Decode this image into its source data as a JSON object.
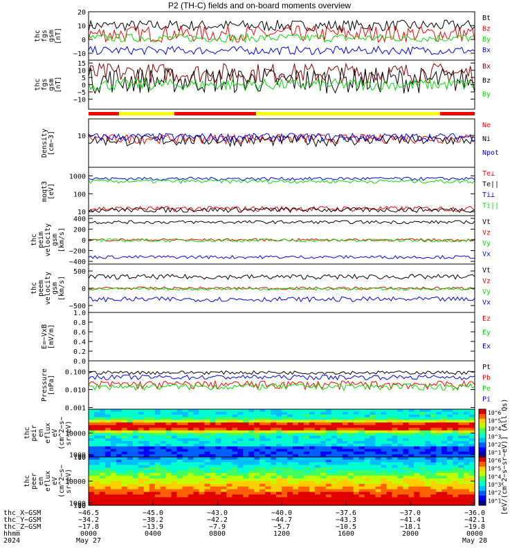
{
  "title": "P2 (TH-C) fields and on-board moments overview",
  "colors": {
    "black": "#000000",
    "red": "#ff0000",
    "green": "#00e000",
    "blue": "#0000ff",
    "darkred": "#8b0000"
  },
  "chart_data": [
    {
      "id": "fgs1",
      "type": "line",
      "ylabel": [
        "thc",
        "fgs",
        "gsm",
        "[nT]"
      ],
      "ylim": [
        -15,
        20
      ],
      "yticks": [
        "20",
        "10",
        "0",
        "−10"
      ],
      "yticks_v": [
        20,
        10,
        0,
        -10
      ],
      "series": [
        {
          "name": "Bt",
          "color": "#000000",
          "level": 10,
          "amp": 4
        },
        {
          "name": "Bz",
          "color": "#ff0000",
          "level": 4,
          "amp": 6
        },
        {
          "name": "By",
          "color": "#00e000",
          "level": 1,
          "amp": 3
        },
        {
          "name": "Bx",
          "color": "#0000ff",
          "level": -8,
          "amp": 3
        }
      ]
    },
    {
      "id": "fgs2",
      "type": "line",
      "ylabel": [
        "thc",
        "fgs",
        "gsm",
        "[nT]"
      ],
      "ylim": [
        -17,
        17
      ],
      "yticks": [
        "15",
        "10",
        "5",
        "0",
        "−5",
        "−10"
      ],
      "yticks_v": [
        15,
        10,
        5,
        0,
        -5,
        -10
      ],
      "series": [
        {
          "name": "Bx",
          "color": "#8b0000",
          "level": 8,
          "amp": 7
        },
        {
          "name": "Bz",
          "color": "#000000",
          "level": 3,
          "amp": 9
        },
        {
          "name": "By",
          "color": "#00e000",
          "level": 0,
          "amp": 4
        }
      ]
    },
    {
      "id": "density",
      "type": "line",
      "log": true,
      "ylabel": [
        "Density",
        "[cm−3]"
      ],
      "ylim": [
        0.7,
        40
      ],
      "yticks": [
        "10"
      ],
      "yticks_v": [
        10
      ],
      "series": [
        {
          "name": "Ne",
          "color": "#ff0000",
          "level": 8,
          "amp": 3
        },
        {
          "name": "Ni",
          "color": "#000000",
          "level": 7,
          "amp": 3
        },
        {
          "name": "Npot",
          "color": "#0000ff",
          "level": 9,
          "amp": 3
        }
      ]
    },
    {
      "id": "temp",
      "type": "line",
      "log": true,
      "ylabel": [
        "moqt3",
        "[eV]"
      ],
      "ylim": [
        6,
        3000
      ],
      "yticks": [
        "1000",
        "100",
        "10"
      ],
      "yticks_v": [
        1000,
        100,
        10
      ],
      "series": [
        {
          "name": "Te⊥",
          "color": "#ff0000",
          "level": 15,
          "amp": 5
        },
        {
          "name": "Te||",
          "color": "#000000",
          "level": 13,
          "amp": 4
        },
        {
          "name": "Ti⊥",
          "color": "#0000ff",
          "level": 700,
          "amp": 150
        },
        {
          "name": "Ti||",
          "color": "#00e000",
          "level": 500,
          "amp": 120
        }
      ]
    },
    {
      "id": "vpeim",
      "type": "line",
      "ylabel": [
        "thc",
        "peim",
        "velocity",
        "gsm",
        "[km/s]"
      ],
      "ylim": [
        -450,
        450
      ],
      "yticks": [
        "400",
        "200",
        "0",
        "−200",
        "−400"
      ],
      "yticks_v": [
        400,
        200,
        0,
        -200,
        -400
      ],
      "series": [
        {
          "name": "Vt",
          "color": "#000000",
          "level": 330,
          "amp": 30
        },
        {
          "name": "Vz",
          "color": "#ff0000",
          "level": 0,
          "amp": 25
        },
        {
          "name": "Vy",
          "color": "#00e000",
          "level": -10,
          "amp": 30
        },
        {
          "name": "Vx",
          "color": "#0000ff",
          "level": -320,
          "amp": 30
        }
      ]
    },
    {
      "id": "vpeem",
      "type": "line",
      "ylabel": [
        "thc",
        "peem",
        "velocity",
        "gsm",
        "[km/s]"
      ],
      "ylim": [
        -700,
        700
      ],
      "yticks": [
        "500",
        "0",
        "−500"
      ],
      "yticks_v": [
        500,
        0,
        -500
      ],
      "series": [
        {
          "name": "Vt",
          "color": "#000000",
          "level": 330,
          "amp": 70
        },
        {
          "name": "Vz",
          "color": "#ff0000",
          "level": 0,
          "amp": 40
        },
        {
          "name": "Vy",
          "color": "#00e000",
          "level": -20,
          "amp": 40
        },
        {
          "name": "Vx",
          "color": "#0000ff",
          "level": -320,
          "amp": 70
        }
      ]
    },
    {
      "id": "efield",
      "type": "line",
      "ylabel": [
        "E=−VxB",
        "[mV/m]"
      ],
      "ylim": [
        0,
        1
      ],
      "yticks": [
        "1.0",
        "0.8",
        "0.6",
        "0.4",
        "0.2",
        "0.0"
      ],
      "yticks_v": [
        1,
        0.8,
        0.6,
        0.4,
        0.2,
        0
      ],
      "series": [
        {
          "name": "Ez",
          "color": "#ff0000"
        },
        {
          "name": "Ey",
          "color": "#00e000"
        },
        {
          "name": "Ex",
          "color": "#0000ff"
        }
      ]
    },
    {
      "id": "pressure",
      "type": "line",
      "log": true,
      "ylabel": [
        "Pressure",
        "[nPa]"
      ],
      "ylim": [
        0.0008,
        0.4
      ],
      "yticks": [
        "0.100",
        "0.010",
        "0.001"
      ],
      "yticks_v": [
        0.1,
        0.01,
        0.001
      ],
      "series": [
        {
          "name": "Pt",
          "color": "#000000",
          "level": 0.09,
          "amp": 0.02
        },
        {
          "name": "Pb",
          "color": "#ff0000",
          "level": 0.02,
          "amp": 0.01
        },
        {
          "name": "Pe",
          "color": "#00e000",
          "level": 0.015,
          "amp": 0.006
        },
        {
          "name": "Pi",
          "color": "#0000ff",
          "level": 0.05,
          "amp": 0.015
        }
      ]
    },
    {
      "id": "peir",
      "type": "heatmap",
      "ylabel": [
        "thc",
        "peir",
        "en",
        "eflux",
        "eV",
        "(cm^2−s−",
        "sr−eV)"
      ],
      "yticks": [
        "10000",
        "1000",
        "100",
        "10"
      ],
      "yticks_v": [
        10000,
        1000,
        100,
        10
      ],
      "ylim": [
        6,
        20000
      ]
    },
    {
      "id": "peer",
      "type": "heatmap",
      "ylabel": [
        "thc",
        "peer",
        "en",
        "eflux",
        "eV",
        "(cm^2−s−",
        "sr−eV)"
      ],
      "yticks": [
        "10000",
        "1000",
        "100",
        "10"
      ],
      "yticks_v": [
        10000,
        1000,
        100,
        10
      ],
      "ylim": [
        6,
        20000
      ]
    }
  ],
  "colorbar": {
    "ticks": [
      "10^6",
      "10^5",
      "10^4",
      "10^3",
      "10^2",
      "10^1",
      "10^6",
      "10^5",
      "10^4",
      "10^3",
      "10^2",
      "10^1"
    ],
    "label": "[eV/(cm^2−s−sr−eV)] (All Qs)"
  },
  "footer": {
    "row_labels": [
      "thc_X−GSM",
      "thc_Y−GSM",
      "thc_Z−GSM",
      "hhmm",
      "2024"
    ],
    "columns": [
      {
        "x": "−46.5",
        "y": "−34.2",
        "z": "−17.8",
        "t": "0000",
        "d": "May 27"
      },
      {
        "x": "−45.0",
        "y": "−38.2",
        "z": "−13.9",
        "t": "0400",
        "d": ""
      },
      {
        "x": "−43.0",
        "y": "−42.2",
        "z": "−7.9",
        "t": "0800",
        "d": ""
      },
      {
        "x": "−40.0",
        "y": "−44.7",
        "z": "−5.7",
        "t": "1200",
        "d": ""
      },
      {
        "x": "−37.6",
        "y": "−43.3",
        "z": "−10.5",
        "t": "1600",
        "d": ""
      },
      {
        "x": "−37.0",
        "y": "−41.4",
        "z": "−18.1",
        "t": "2000",
        "d": ""
      },
      {
        "x": "−36.0",
        "y": "−42.1",
        "z": "−19.8",
        "t": "0000",
        "d": "May 28"
      }
    ]
  }
}
